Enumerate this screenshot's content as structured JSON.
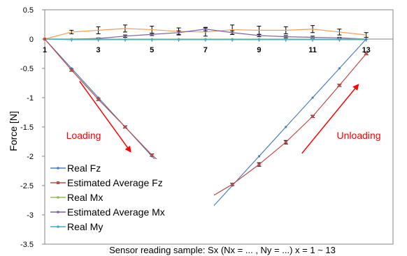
{
  "chart_data": {
    "type": "line",
    "x": [
      1,
      2,
      3,
      4,
      5,
      6,
      7,
      8,
      9,
      10,
      11,
      12,
      13
    ],
    "x_tick_labels": [
      "1",
      "3",
      "5",
      "7",
      "9",
      "11",
      "13"
    ],
    "x_tick_values": [
      1,
      3,
      5,
      7,
      9,
      11,
      13
    ],
    "y_tick_labels": [
      "0.5",
      "0",
      "-0.5",
      "-1",
      "-1.5",
      "-2",
      "-2.5",
      "-3",
      "-3.5"
    ],
    "y_tick_values": [
      0.5,
      0,
      -0.5,
      -1,
      -1.5,
      -2,
      -2.5,
      -3,
      -3.5
    ],
    "xlim": [
      1,
      14
    ],
    "ylim": [
      -3.5,
      0.5
    ],
    "ylabel": "Force [N]",
    "xlabel": "Sensor reading sample: Sx (Nx = ... , Ny = ...) x = 1 ~ 13",
    "grid": false,
    "legend_position": "bottom-left",
    "series": [
      {
        "name": "Real Fz",
        "color": "#4a7ebb",
        "marker": "dot",
        "values": [
          0,
          -0.5,
          -1,
          -1.5,
          -2,
          -2.5,
          -3,
          -2.5,
          -2,
          -1.5,
          -1,
          -0.5,
          0
        ]
      },
      {
        "name": "Estimated Average Fz",
        "color": "#be4b48",
        "marker": "square",
        "values": [
          0,
          -0.53,
          -1.03,
          -1.5,
          -1.98,
          -2.37,
          -2.75,
          -2.48,
          -2.14,
          -1.76,
          -1.32,
          -0.79,
          -0.25
        ],
        "errors": [
          0,
          0.02,
          0.02,
          0.02,
          0.02,
          0.03,
          0.02,
          0.02,
          0.03,
          0.03,
          0.02,
          0.02,
          0.02
        ]
      },
      {
        "name": "Real Mx",
        "color": "#98b954",
        "marker": "dot",
        "values": [
          0,
          0,
          0,
          0,
          0,
          0,
          0,
          0,
          0,
          0,
          0,
          0,
          0
        ]
      },
      {
        "name": "Estimated Average Mx",
        "color": "#7d60a0",
        "marker": "dot",
        "values": [
          0,
          0,
          0.01,
          0.05,
          0.08,
          0.11,
          0.17,
          0.11,
          0.06,
          0.04,
          0.03,
          0.02,
          0
        ],
        "errors": [
          0,
          0,
          0.01,
          0.02,
          0.02,
          0.03,
          0.03,
          0.03,
          0.02,
          0.02,
          0.02,
          0.01,
          0
        ]
      },
      {
        "name": "Real My",
        "color": "#46aac5",
        "marker": "dot",
        "values": [
          0,
          -0.01,
          -0.01,
          -0.01,
          -0.01,
          -0.01,
          -0.01,
          -0.01,
          -0.01,
          -0.01,
          -0.01,
          -0.01,
          -0.01
        ]
      },
      {
        "name": "",
        "color": "#f59d56",
        "marker": "none",
        "values": [
          0,
          0.12,
          0.15,
          0.18,
          0.16,
          0.13,
          0.12,
          0.16,
          0.15,
          0.15,
          0.17,
          0.12,
          0.07
        ],
        "errors": [
          0,
          0.03,
          0.06,
          0.06,
          0.06,
          0.06,
          0.07,
          0.08,
          0.07,
          0.06,
          0.06,
          0.05,
          0.04
        ]
      }
    ],
    "annotations": [
      {
        "text": "Loading",
        "color": "#ff0000",
        "x": 1.8,
        "y": -1.7
      },
      {
        "text": "Unloading",
        "color": "#ff0000",
        "x": 11.9,
        "y": -1.7
      }
    ],
    "arrows": [
      {
        "color": "#ff0000",
        "from": [
          2.3,
          -0.72
        ],
        "to": [
          4.2,
          -1.92
        ]
      },
      {
        "color": "#ff0000",
        "from": [
          10.6,
          -1.95
        ],
        "to": [
          12.7,
          -0.78
        ]
      }
    ]
  }
}
